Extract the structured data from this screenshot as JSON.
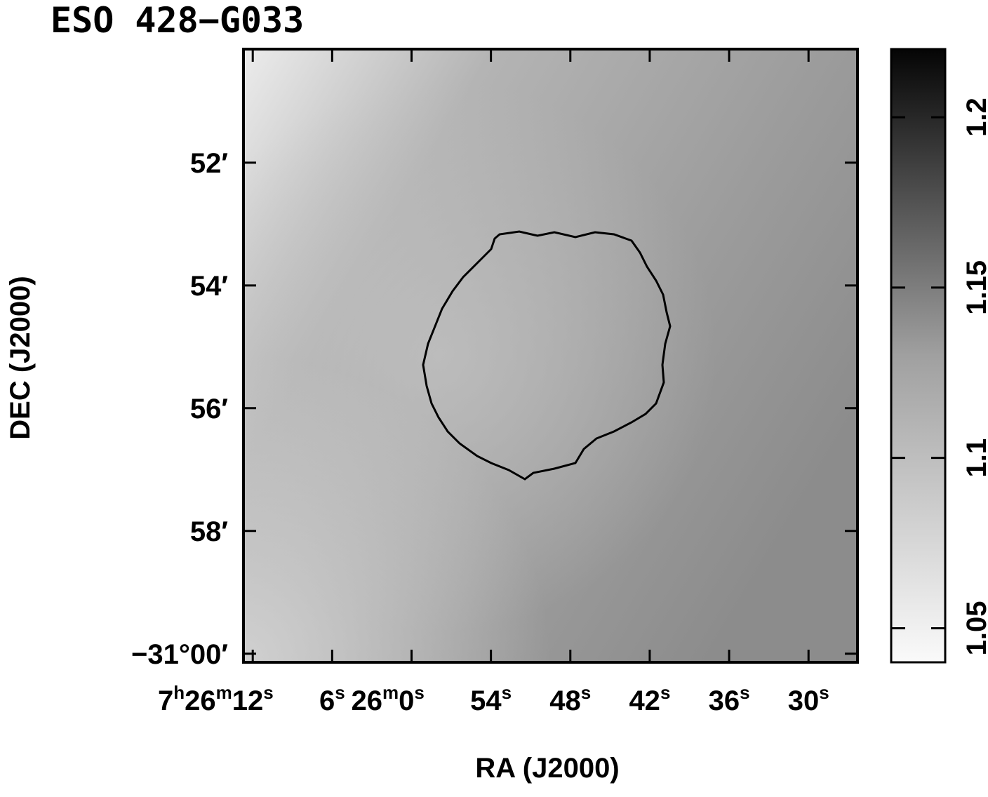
{
  "chart_data": {
    "type": "image",
    "title": "ESO 428−G033",
    "x_label": "RA (J2000)",
    "y_label": "DEC (J2000)",
    "xlim": [
      1572.7,
      1526.3
    ],
    "xticks": [
      {
        "value": 1572,
        "label": "7h26m12s"
      },
      {
        "value": 1566,
        "label": "6s"
      },
      {
        "value": 1560,
        "label": "26m0s"
      },
      {
        "value": 1554,
        "label": "54s"
      },
      {
        "value": 1548,
        "label": "48s"
      },
      {
        "value": 1542,
        "label": "42s"
      },
      {
        "value": 1536,
        "label": "36s"
      },
      {
        "value": 1530,
        "label": "30s"
      }
    ],
    "ylim": [
      -1860.14,
      -1850.15
    ],
    "yticks": [
      {
        "value": -1852,
        "label": "52′"
      },
      {
        "value": -1854,
        "label": "54′"
      },
      {
        "value": -1856,
        "label": "56′"
      },
      {
        "value": -1858,
        "label": "58′"
      },
      {
        "value": -1860,
        "label": "−31°00′"
      }
    ],
    "colorbar_lim": [
      1.04,
      1.22
    ],
    "colorbar_ticks": [
      1.05,
      1.1,
      1.15,
      1.2
    ]
  }
}
